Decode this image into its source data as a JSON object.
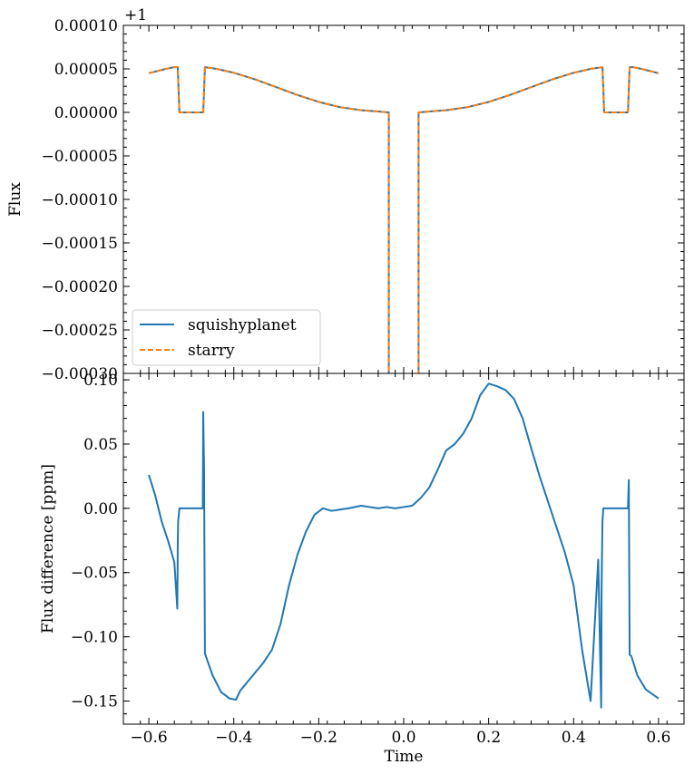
{
  "chart_data": [
    {
      "type": "line",
      "ylabel": "Flux",
      "offset_label": "+1",
      "yticks": [
        "0.00010",
        "0.00005",
        "0.00000",
        "−0.00005",
        "−0.00010",
        "−0.00015",
        "−0.00020",
        "−0.00025",
        "−0.00030"
      ],
      "ylim": [
        -0.0003,
        0.0001
      ],
      "xlim": [
        -0.66,
        0.66
      ],
      "legend_location": "lower-left",
      "series": [
        {
          "name": "squishyplanet",
          "color": "#1f77b4",
          "style": "solid",
          "x": [
            -0.6,
            -0.58,
            -0.56,
            -0.54,
            -0.532,
            -0.528,
            -0.5,
            -0.472,
            -0.468,
            -0.44,
            -0.4,
            -0.35,
            -0.3,
            -0.25,
            -0.2,
            -0.15,
            -0.1,
            -0.06,
            -0.036,
            -0.035,
            -0.035,
            0.035,
            0.035,
            0.036,
            0.06,
            0.1,
            0.15,
            0.2,
            0.25,
            0.3,
            0.35,
            0.4,
            0.44,
            0.468,
            0.472,
            0.5,
            0.528,
            0.532,
            0.54,
            0.56,
            0.58,
            0.6
          ],
          "y": [
            4.5e-05,
            4.75e-05,
            5e-05,
            5.2e-05,
            5.2e-05,
            0.0,
            0.0,
            0.0,
            5.2e-05,
            5e-05,
            4.55e-05,
            3.8e-05,
            2.9e-05,
            2e-05,
            1.2e-05,
            6e-06,
            2.5e-06,
            1e-06,
            0.0,
            0.0,
            -0.0005,
            -0.0005,
            0.0,
            0.0,
            1e-06,
            2.5e-06,
            6e-06,
            1.2e-05,
            2e-05,
            2.9e-05,
            3.8e-05,
            4.55e-05,
            5e-05,
            5.2e-05,
            0.0,
            0.0,
            0.0,
            5.2e-05,
            5.2e-05,
            5e-05,
            4.75e-05,
            4.5e-05
          ]
        },
        {
          "name": "starry",
          "color": "#ff7f0e",
          "style": "dashed",
          "x": [
            -0.6,
            -0.58,
            -0.56,
            -0.54,
            -0.532,
            -0.528,
            -0.5,
            -0.472,
            -0.468,
            -0.44,
            -0.4,
            -0.35,
            -0.3,
            -0.25,
            -0.2,
            -0.15,
            -0.1,
            -0.06,
            -0.036,
            -0.035,
            -0.035,
            0.035,
            0.035,
            0.036,
            0.06,
            0.1,
            0.15,
            0.2,
            0.25,
            0.3,
            0.35,
            0.4,
            0.44,
            0.468,
            0.472,
            0.5,
            0.528,
            0.532,
            0.54,
            0.56,
            0.58,
            0.6
          ],
          "y": [
            4.5e-05,
            4.75e-05,
            5e-05,
            5.2e-05,
            5.2e-05,
            0.0,
            0.0,
            0.0,
            5.2e-05,
            5e-05,
            4.55e-05,
            3.8e-05,
            2.9e-05,
            2e-05,
            1.2e-05,
            6e-06,
            2.5e-06,
            1e-06,
            0.0,
            0.0,
            -0.0005,
            -0.0005,
            0.0,
            0.0,
            1e-06,
            2.5e-06,
            6e-06,
            1.2e-05,
            2e-05,
            2.9e-05,
            3.8e-05,
            4.55e-05,
            5e-05,
            5.2e-05,
            0.0,
            0.0,
            0.0,
            5.2e-05,
            5.2e-05,
            5e-05,
            4.75e-05,
            4.5e-05
          ]
        }
      ]
    },
    {
      "type": "line",
      "xlabel": "Time",
      "ylabel": "Flux difference [ppm]",
      "xticks": [
        "−0.6",
        "−0.4",
        "−0.2",
        "0.0",
        "0.2",
        "0.4",
        "0.6"
      ],
      "yticks": [
        "0.10",
        "0.05",
        "0.00",
        "−0.05",
        "−0.10",
        "−0.15"
      ],
      "xlim": [
        -0.66,
        0.66
      ],
      "ylim": [
        -0.168,
        0.105
      ],
      "series": [
        {
          "color": "#1f77b4",
          "x": [
            -0.6,
            -0.585,
            -0.57,
            -0.555,
            -0.54,
            -0.533,
            -0.532,
            -0.531,
            -0.528,
            -0.5,
            -0.473,
            -0.472,
            -0.47,
            -0.468,
            -0.45,
            -0.43,
            -0.41,
            -0.395,
            -0.385,
            -0.37,
            -0.35,
            -0.33,
            -0.31,
            -0.29,
            -0.27,
            -0.25,
            -0.23,
            -0.21,
            -0.19,
            -0.17,
            -0.15,
            -0.13,
            -0.1,
            -0.08,
            -0.06,
            -0.04,
            -0.02,
            0.0,
            0.02,
            0.04,
            0.06,
            0.08,
            0.1,
            0.12,
            0.14,
            0.16,
            0.18,
            0.2,
            0.22,
            0.24,
            0.26,
            0.28,
            0.3,
            0.32,
            0.34,
            0.36,
            0.38,
            0.4,
            0.42,
            0.44,
            0.458,
            0.465,
            0.466,
            0.468,
            0.47,
            0.5,
            0.528,
            0.53,
            0.532,
            0.536,
            0.55,
            0.57,
            0.6
          ],
          "y": [
            0.026,
            0.01,
            -0.01,
            -0.025,
            -0.042,
            -0.078,
            -0.03,
            -0.01,
            0.0,
            0.0,
            0.0,
            0.075,
            0.03,
            -0.113,
            -0.13,
            -0.143,
            -0.148,
            -0.149,
            -0.142,
            -0.136,
            -0.128,
            -0.12,
            -0.11,
            -0.09,
            -0.06,
            -0.036,
            -0.018,
            -0.005,
            0.0,
            -0.002,
            -0.001,
            0.0,
            0.002,
            0.001,
            0.0,
            0.001,
            0.0,
            0.001,
            0.002,
            0.008,
            0.016,
            0.03,
            0.045,
            0.05,
            0.058,
            0.07,
            0.088,
            0.097,
            0.095,
            0.092,
            0.085,
            0.07,
            0.047,
            0.025,
            0.005,
            -0.015,
            -0.035,
            -0.06,
            -0.11,
            -0.15,
            -0.04,
            -0.155,
            -0.06,
            -0.01,
            0.0,
            0.0,
            0.0,
            0.022,
            -0.114,
            -0.115,
            -0.13,
            -0.141,
            -0.148
          ]
        }
      ]
    }
  ]
}
